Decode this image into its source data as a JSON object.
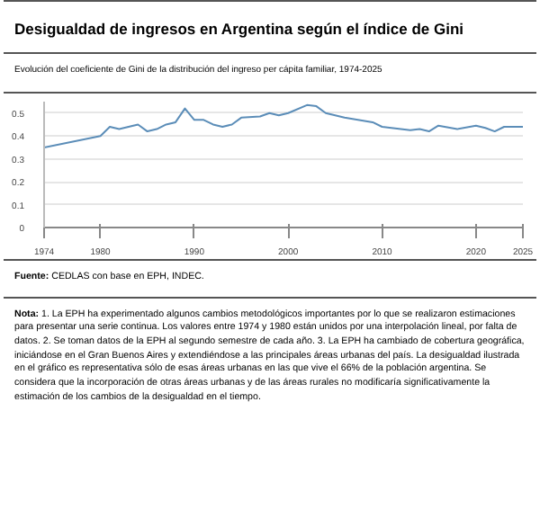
{
  "chart_data": {
    "type": "line",
    "title": "Desigualdad de ingresos en Argentina según el índice de Gini",
    "subtitle": "Evolución del coeficiente de Gini de la distribución del ingreso per cápita familiar, 1974-2025",
    "x": [
      1974,
      1980,
      1981,
      1982,
      1984,
      1985,
      1986,
      1987,
      1988,
      1989,
      1990,
      1991,
      1992,
      1993,
      1994,
      1995,
      1997,
      1998,
      1999,
      2000,
      2002,
      2003,
      2004,
      2006,
      2009,
      2010,
      2013,
      2014,
      2015,
      2016,
      2018,
      2020,
      2021,
      2022,
      2023,
      2025
    ],
    "series": [
      {
        "color": "#5b8db8",
        "values": [
          0.35,
          0.4,
          0.44,
          0.43,
          0.45,
          0.42,
          0.43,
          0.45,
          0.46,
          0.52,
          0.47,
          0.47,
          0.45,
          0.44,
          0.45,
          0.48,
          0.485,
          0.5,
          0.49,
          0.5,
          0.535,
          0.53,
          0.5,
          0.48,
          0.46,
          0.44,
          0.425,
          0.43,
          0.42,
          0.445,
          0.43,
          0.445,
          0.435,
          0.42,
          0.44,
          0.44
        ]
      }
    ],
    "xlim": [
      1974,
      2025
    ],
    "xticks": [
      1974,
      1980,
      1990,
      2000,
      2010,
      2020,
      2025
    ],
    "ylim": [
      0,
      0.55
    ],
    "yticks": [
      0,
      0.1,
      0.2,
      0.3,
      0.4,
      0.5
    ],
    "grid": "y",
    "marker": "none",
    "line_style": "solid",
    "annotations": [
      "Fuente: CEDLAS con base en EPH, INDEC.",
      "Nota: 1. La EPH ha experimentado algunos cambios metodológicos importantes por lo que se realizaron estimaciones para presentar una serie continua. Los valores entre 1974 y 1980 están unidos por una interpolación lineal, por falta de datos. 2. Se toman datos de la EPH al segundo semestre de cada año. 3. La EPH ha cambiado de cobertura geográfica, iniciándose en el Gran Buenos Aires y extendiéndose a las principales áreas urbanas del país. La desigualdad ilustrada en el gráfico es representativa sólo de esas áreas urbanas en las que vive el 66% de la población argentina. Se considera que la incorporación de otras áreas urbanas y de las áreas rurales no modificaría significativamente la estimación de los cambios de la desigualdad en el tiempo."
    ]
  }
}
